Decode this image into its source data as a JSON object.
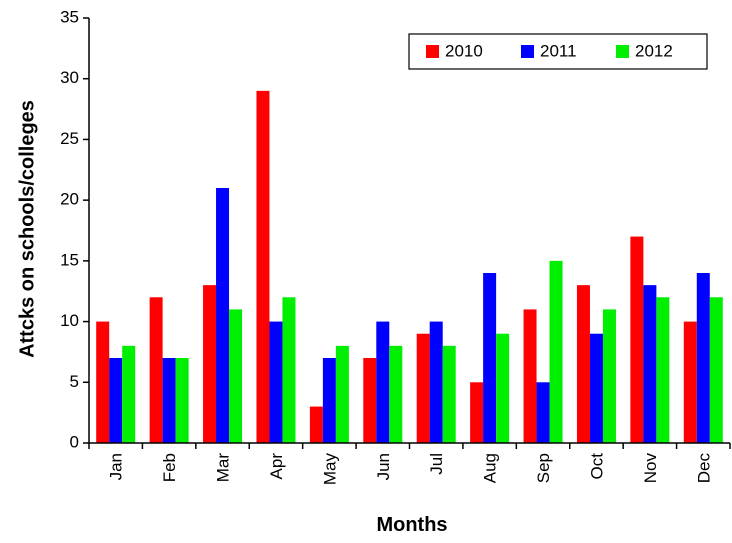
{
  "chart_data": {
    "type": "bar",
    "title": "",
    "xlabel": "Months",
    "ylabel": "Attcks on schools/colleges",
    "ylim": [
      0,
      35
    ],
    "yticks": [
      0,
      5,
      10,
      15,
      20,
      25,
      30,
      35
    ],
    "grid": false,
    "legend_position": "top-right",
    "categories": [
      "Jan",
      "Feb",
      "Mar",
      "Apr",
      "May",
      "Jun",
      "Jul",
      "Aug",
      "Sep",
      "Oct",
      "Nov",
      "Dec"
    ],
    "series": [
      {
        "name": "2010",
        "color": "#ff0000",
        "values": [
          10,
          12,
          13,
          29,
          3,
          7,
          9,
          5,
          11,
          13,
          17,
          10
        ]
      },
      {
        "name": "2011",
        "color": "#0000ff",
        "values": [
          7,
          7,
          21,
          10,
          7,
          10,
          10,
          14,
          5,
          9,
          13,
          14
        ]
      },
      {
        "name": "2012",
        "color": "#00ee00",
        "values": [
          8,
          7,
          11,
          12,
          8,
          8,
          8,
          9,
          15,
          11,
          12,
          12
        ]
      }
    ]
  }
}
